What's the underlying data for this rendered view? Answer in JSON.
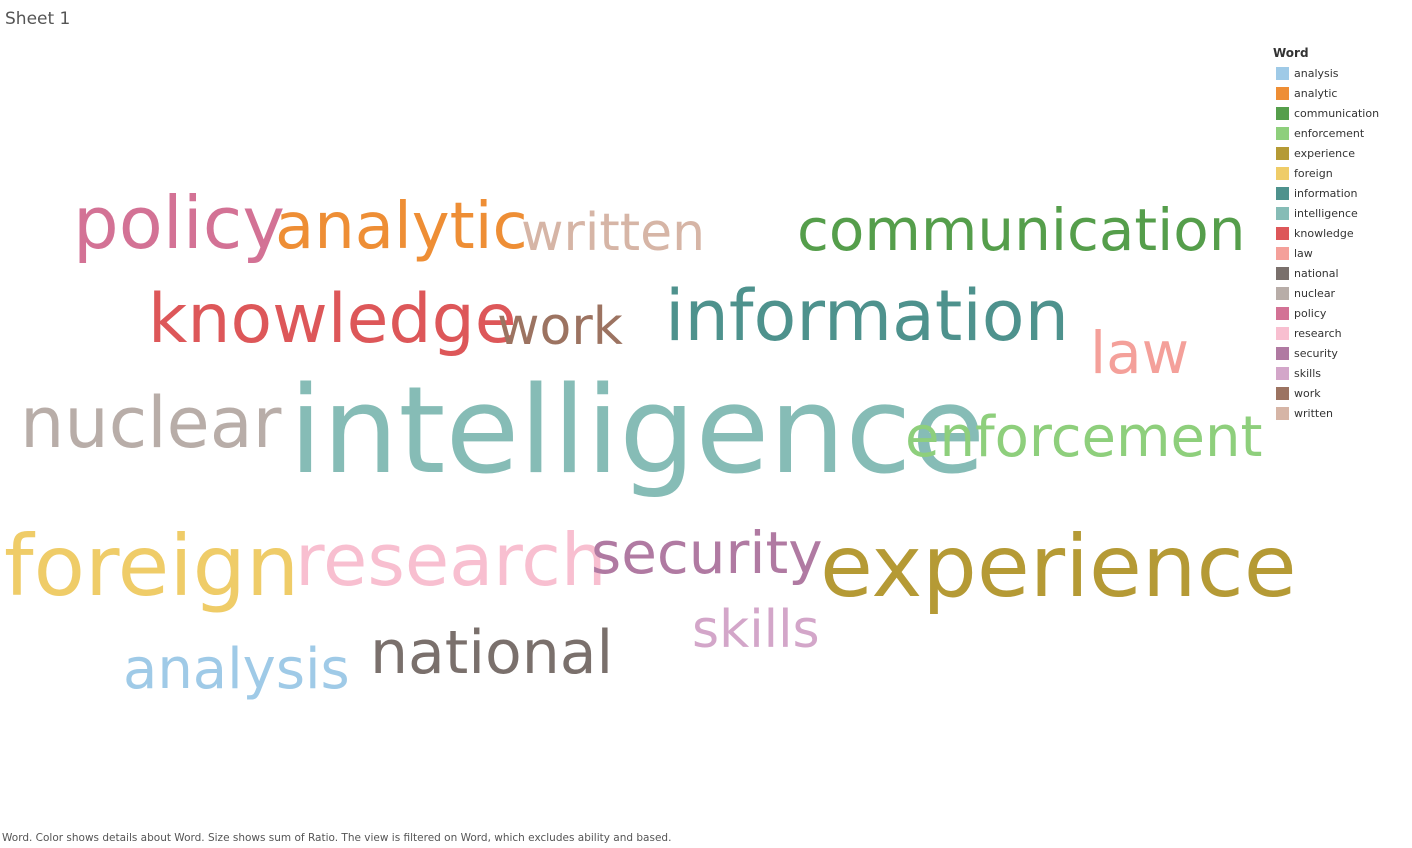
{
  "sheet_title": "Sheet 1",
  "legend": {
    "title": "Word",
    "items": [
      {
        "label": "analysis",
        "color": "#9fcae7"
      },
      {
        "label": "analytic",
        "color": "#ee8e35"
      },
      {
        "label": "communication",
        "color": "#559e4b"
      },
      {
        "label": "enforcement",
        "color": "#8ecf7c"
      },
      {
        "label": "experience",
        "color": "#b59a35"
      },
      {
        "label": "foreign",
        "color": "#efcc68"
      },
      {
        "label": "information",
        "color": "#4e928d"
      },
      {
        "label": "intelligence",
        "color": "#86bcb6"
      },
      {
        "label": "knowledge",
        "color": "#dd5759"
      },
      {
        "label": "law",
        "color": "#f4a09a"
      },
      {
        "label": "national",
        "color": "#7a706c"
      },
      {
        "label": "nuclear",
        "color": "#b8ada8"
      },
      {
        "label": "policy",
        "color": "#d37295"
      },
      {
        "label": "research",
        "color": "#f8bfd0"
      },
      {
        "label": "security",
        "color": "#b07aa2"
      },
      {
        "label": "skills",
        "color": "#d3a6c9"
      },
      {
        "label": "work",
        "color": "#9c7361"
      },
      {
        "label": "written",
        "color": "#d6b5a6"
      }
    ]
  },
  "caption": "Word.  Color shows details about Word.  Size shows sum of Ratio. The view is filtered on Word, which excludes ability and based.",
  "chart_data": {
    "type": "wordcloud",
    "size_measure": "Ratio",
    "words": [
      {
        "word": "intelligence",
        "color": "#86bcb6",
        "size": 1.0
      },
      {
        "word": "experience",
        "color": "#b59a35",
        "size": 0.71
      },
      {
        "word": "foreign",
        "color": "#efcc68",
        "size": 0.67
      },
      {
        "word": "information",
        "color": "#4e928d",
        "size": 0.62
      },
      {
        "word": "knowledge",
        "color": "#dd5759",
        "size": 0.6
      },
      {
        "word": "nuclear",
        "color": "#b8ada8",
        "size": 0.59
      },
      {
        "word": "policy",
        "color": "#d37295",
        "size": 0.58
      },
      {
        "word": "research",
        "color": "#f8bfd0",
        "size": 0.58
      },
      {
        "word": "analytic",
        "color": "#ee8e35",
        "size": 0.55
      },
      {
        "word": "communication",
        "color": "#559e4b",
        "size": 0.51
      },
      {
        "word": "national",
        "color": "#7a706c",
        "size": 0.51
      },
      {
        "word": "law",
        "color": "#f4a09a",
        "size": 0.5
      },
      {
        "word": "security",
        "color": "#b07aa2",
        "size": 0.5
      },
      {
        "word": "enforcement",
        "color": "#8ecf7c",
        "size": 0.49
      },
      {
        "word": "analysis",
        "color": "#9fcae7",
        "size": 0.49
      },
      {
        "word": "written",
        "color": "#d6b5a6",
        "size": 0.46
      },
      {
        "word": "skills",
        "color": "#d3a6c9",
        "size": 0.46
      },
      {
        "word": "work",
        "color": "#9c7361",
        "size": 0.45
      }
    ]
  }
}
